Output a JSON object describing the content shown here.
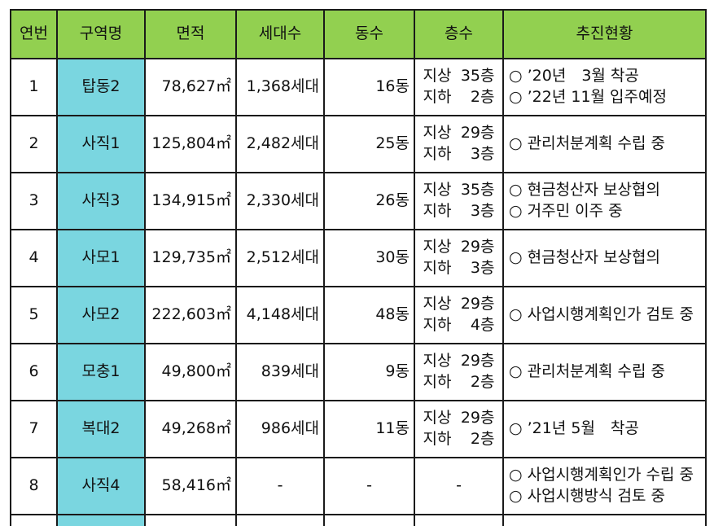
{
  "headers": [
    "연번",
    "구역명",
    "면적",
    "세대수",
    "동수",
    "층수",
    "추진현황"
  ],
  "rows": [
    {
      "no": "1",
      "zone": "탑동2",
      "area": "78,627㎡",
      "households": "1,368세대",
      "buildings": "16동",
      "floors": [
        {
          "label": "지상",
          "value": "35층"
        },
        {
          "label": "지하",
          "value": "2층"
        }
      ],
      "status": [
        "○ ’20년　3월 착공",
        "○ ’22년 11월 입주예정"
      ]
    },
    {
      "no": "2",
      "zone": "사직1",
      "area": "125,804㎡",
      "households": "2,482세대",
      "buildings": "25동",
      "floors": [
        {
          "label": "지상",
          "value": "29층"
        },
        {
          "label": "지하",
          "value": "3층"
        }
      ],
      "status": [
        "○ 관리처분계획 수립 중"
      ]
    },
    {
      "no": "3",
      "zone": "사직3",
      "area": "134,915㎡",
      "households": "2,330세대",
      "buildings": "26동",
      "floors": [
        {
          "label": "지상",
          "value": "35층"
        },
        {
          "label": "지하",
          "value": "3층"
        }
      ],
      "status": [
        "○ 현금청산자 보상협의",
        "○ 거주민 이주 중"
      ]
    },
    {
      "no": "4",
      "zone": "사모1",
      "area": "129,735㎡",
      "households": "2,512세대",
      "buildings": "30동",
      "floors": [
        {
          "label": "지상",
          "value": "29층"
        },
        {
          "label": "지하",
          "value": "3층"
        }
      ],
      "status": [
        "○ 현금청산자 보상협의"
      ]
    },
    {
      "no": "5",
      "zone": "사모2",
      "area": "222,603㎡",
      "households": "4,148세대",
      "buildings": "48동",
      "floors": [
        {
          "label": "지상",
          "value": "29층"
        },
        {
          "label": "지하",
          "value": "4층"
        }
      ],
      "status": [
        "○ 사업시행계획인가 검토 중"
      ]
    },
    {
      "no": "6",
      "zone": "모충1",
      "area": "49,800㎡",
      "households": "839세대",
      "buildings": "9동",
      "floors": [
        {
          "label": "지상",
          "value": "29층"
        },
        {
          "label": "지하",
          "value": "2층"
        }
      ],
      "status": [
        "○ 관리처분계획 수립 중"
      ]
    },
    {
      "no": "7",
      "zone": "복대2",
      "area": "49,268㎡",
      "households": "986세대",
      "buildings": "11동",
      "floors": [
        {
          "label": "지상",
          "value": "29층"
        },
        {
          "label": "지하",
          "value": "2층"
        }
      ],
      "status": [
        "○ ’21년 5월　착공"
      ]
    },
    {
      "no": "8",
      "zone": "사직4",
      "area": "58,416㎡",
      "households": "-",
      "buildings": "-",
      "floors": [
        {
          "label": "",
          "value": "-"
        }
      ],
      "status": [
        "○ 사업시행계획인가 수립 중",
        "○ 사업시행방식 검토 중"
      ]
    }
  ],
  "colors": {
    "header_bg": "#92d050",
    "zone_bg": "#7ad6e0",
    "border": "#1a1a1a"
  }
}
